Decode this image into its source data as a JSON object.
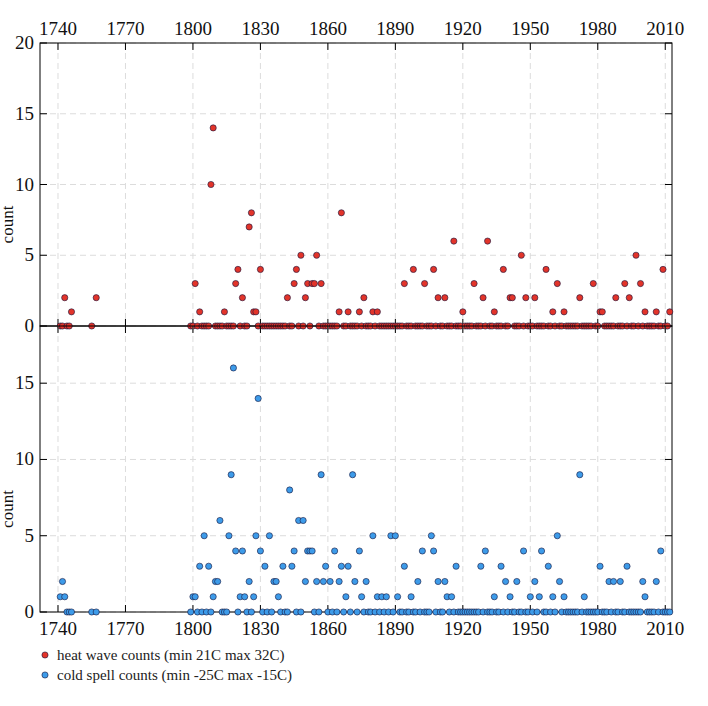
{
  "chart_data": [
    {
      "type": "scatter",
      "y_label": "count",
      "xlim": [
        1732,
        2013
      ],
      "xticks": [
        1740,
        1770,
        1800,
        1830,
        1860,
        1890,
        1920,
        1950,
        1980,
        2010
      ],
      "ylim": [
        0,
        20
      ],
      "yticks": [
        0,
        5,
        10,
        15,
        20
      ],
      "grid": true,
      "legend": "bottom",
      "x": [
        1741,
        1742,
        1743,
        1744,
        1745,
        1746,
        1755,
        1757,
        1799,
        1800,
        1801,
        1802,
        1803,
        1804,
        1805,
        1806,
        1807,
        1808,
        1809,
        1810,
        1811,
        1812,
        1813,
        1814,
        1815,
        1816,
        1817,
        1818,
        1819,
        1820,
        1821,
        1822,
        1823,
        1824,
        1825,
        1826,
        1827,
        1828,
        1829,
        1830,
        1831,
        1832,
        1833,
        1834,
        1835,
        1836,
        1837,
        1838,
        1839,
        1840,
        1841,
        1842,
        1843,
        1844,
        1845,
        1846,
        1847,
        1848,
        1849,
        1850,
        1851,
        1852,
        1853,
        1854,
        1855,
        1856,
        1857,
        1858,
        1859,
        1860,
        1861,
        1862,
        1863,
        1864,
        1865,
        1866,
        1867,
        1868,
        1869,
        1870,
        1871,
        1872,
        1873,
        1874,
        1875,
        1876,
        1877,
        1878,
        1879,
        1880,
        1881,
        1882,
        1883,
        1884,
        1885,
        1886,
        1887,
        1888,
        1889,
        1890,
        1891,
        1892,
        1893,
        1894,
        1895,
        1896,
        1897,
        1898,
        1899,
        1900,
        1901,
        1902,
        1903,
        1904,
        1905,
        1906,
        1907,
        1908,
        1909,
        1910,
        1911,
        1912,
        1913,
        1914,
        1915,
        1916,
        1917,
        1918,
        1919,
        1920,
        1921,
        1922,
        1923,
        1924,
        1925,
        1926,
        1927,
        1928,
        1929,
        1930,
        1931,
        1932,
        1933,
        1934,
        1935,
        1936,
        1937,
        1938,
        1939,
        1940,
        1941,
        1942,
        1943,
        1944,
        1945,
        1946,
        1947,
        1948,
        1949,
        1950,
        1951,
        1952,
        1953,
        1954,
        1955,
        1956,
        1957,
        1958,
        1959,
        1960,
        1961,
        1962,
        1963,
        1964,
        1965,
        1966,
        1967,
        1968,
        1969,
        1970,
        1971,
        1972,
        1973,
        1974,
        1975,
        1976,
        1977,
        1978,
        1979,
        1980,
        1981,
        1982,
        1983,
        1984,
        1985,
        1986,
        1987,
        1988,
        1989,
        1990,
        1991,
        1992,
        1993,
        1994,
        1995,
        1996,
        1997,
        1998,
        1999,
        2000,
        2001,
        2002,
        2003,
        2004,
        2005,
        2006,
        2007,
        2008,
        2009,
        2010,
        2011,
        2012
      ],
      "series": [
        {
          "name": "heat wave counts (min 21C max 32C)",
          "color": "#e2342a",
          "marker": "circle",
          "values": [
            0,
            0,
            2,
            0,
            0,
            1,
            0,
            2,
            0,
            0,
            3,
            0,
            1,
            0,
            0,
            0,
            0,
            10,
            14,
            0,
            0,
            0,
            0,
            1,
            0,
            0,
            0,
            0,
            3,
            4,
            0,
            2,
            0,
            0,
            7,
            8,
            1,
            1,
            0,
            4,
            0,
            0,
            0,
            0,
            0,
            0,
            0,
            0,
            0,
            0,
            0,
            2,
            0,
            0,
            3,
            4,
            0,
            5,
            0,
            2,
            3,
            0,
            3,
            3,
            5,
            0,
            3,
            0,
            0,
            0,
            0,
            0,
            0,
            0,
            1,
            8,
            0,
            0,
            1,
            0,
            0,
            0,
            0,
            1,
            0,
            2,
            0,
            0,
            0,
            1,
            0,
            1,
            0,
            0,
            0,
            0,
            0,
            0,
            0,
            0,
            0,
            0,
            0,
            3,
            0,
            0,
            0,
            4,
            0,
            0,
            0,
            0,
            3,
            0,
            0,
            0,
            4,
            0,
            2,
            0,
            0,
            2,
            0,
            0,
            0,
            6,
            0,
            0,
            0,
            1,
            0,
            0,
            0,
            0,
            3,
            0,
            0,
            0,
            2,
            0,
            6,
            0,
            0,
            1,
            0,
            0,
            0,
            4,
            0,
            0,
            2,
            2,
            0,
            0,
            0,
            5,
            0,
            2,
            0,
            0,
            0,
            2,
            0,
            0,
            0,
            0,
            4,
            0,
            0,
            1,
            0,
            3,
            0,
            0,
            1,
            0,
            0,
            0,
            0,
            0,
            0,
            2,
            0,
            0,
            0,
            0,
            0,
            3,
            0,
            0,
            1,
            1,
            0,
            0,
            0,
            0,
            0,
            2,
            0,
            0,
            0,
            3,
            0,
            2,
            0,
            0,
            5,
            0,
            3,
            0,
            1,
            0,
            0,
            0,
            0,
            1,
            0,
            0,
            4,
            0,
            0,
            1
          ]
        }
      ]
    },
    {
      "type": "scatter",
      "y_label": "count",
      "xlim": [
        1732,
        2013
      ],
      "xticks": [
        1740,
        1770,
        1800,
        1830,
        1860,
        1890,
        1920,
        1950,
        1980,
        2010
      ],
      "ylim": [
        0,
        18.75
      ],
      "yticks": [
        0,
        5,
        10,
        15
      ],
      "grid": true,
      "legend": "bottom",
      "x": [
        1741,
        1742,
        1743,
        1744,
        1745,
        1746,
        1755,
        1757,
        1799,
        1800,
        1801,
        1802,
        1803,
        1804,
        1805,
        1806,
        1807,
        1808,
        1809,
        1810,
        1811,
        1812,
        1813,
        1814,
        1815,
        1816,
        1817,
        1818,
        1819,
        1820,
        1821,
        1822,
        1823,
        1824,
        1825,
        1826,
        1827,
        1828,
        1829,
        1830,
        1831,
        1832,
        1833,
        1834,
        1835,
        1836,
        1837,
        1838,
        1839,
        1840,
        1841,
        1842,
        1843,
        1844,
        1845,
        1846,
        1847,
        1848,
        1849,
        1850,
        1851,
        1852,
        1853,
        1854,
        1855,
        1856,
        1857,
        1858,
        1859,
        1860,
        1861,
        1862,
        1863,
        1864,
        1865,
        1866,
        1867,
        1868,
        1869,
        1870,
        1871,
        1872,
        1873,
        1874,
        1875,
        1876,
        1877,
        1878,
        1879,
        1880,
        1881,
        1882,
        1883,
        1884,
        1885,
        1886,
        1887,
        1888,
        1889,
        1890,
        1891,
        1892,
        1893,
        1894,
        1895,
        1896,
        1897,
        1898,
        1899,
        1900,
        1901,
        1902,
        1903,
        1904,
        1905,
        1906,
        1907,
        1908,
        1909,
        1910,
        1911,
        1912,
        1913,
        1914,
        1915,
        1916,
        1917,
        1918,
        1919,
        1920,
        1921,
        1922,
        1923,
        1924,
        1925,
        1926,
        1927,
        1928,
        1929,
        1930,
        1931,
        1932,
        1933,
        1934,
        1935,
        1936,
        1937,
        1938,
        1939,
        1940,
        1941,
        1942,
        1943,
        1944,
        1945,
        1946,
        1947,
        1948,
        1949,
        1950,
        1951,
        1952,
        1953,
        1954,
        1955,
        1956,
        1957,
        1958,
        1959,
        1960,
        1961,
        1962,
        1963,
        1964,
        1965,
        1966,
        1967,
        1968,
        1969,
        1970,
        1971,
        1972,
        1973,
        1974,
        1975,
        1976,
        1977,
        1978,
        1979,
        1980,
        1981,
        1982,
        1983,
        1984,
        1985,
        1986,
        1987,
        1988,
        1989,
        1990,
        1991,
        1992,
        1993,
        1994,
        1995,
        1996,
        1997,
        1998,
        1999,
        2000,
        2001,
        2002,
        2003,
        2004,
        2005,
        2006,
        2007,
        2008,
        2009,
        2010,
        2011,
        2012
      ],
      "series": [
        {
          "name": "cold spell counts (min -25C max -15C)",
          "color": "#3d9be9",
          "marker": "circle",
          "values": [
            1,
            2,
            1,
            0,
            0,
            0,
            0,
            0,
            0,
            1,
            1,
            0,
            3,
            0,
            5,
            0,
            3,
            0,
            1,
            2,
            2,
            6,
            0,
            0,
            0,
            5,
            9,
            16,
            4,
            0,
            1,
            4,
            1,
            0,
            2,
            0,
            1,
            5,
            14,
            4,
            0,
            3,
            0,
            5,
            0,
            2,
            2,
            1,
            0,
            3,
            0,
            0,
            8,
            3,
            4,
            0,
            6,
            0,
            6,
            2,
            4,
            4,
            4,
            0,
            2,
            0,
            9,
            2,
            3,
            0,
            2,
            0,
            4,
            0,
            2,
            3,
            0,
            1,
            3,
            0,
            9,
            2,
            0,
            4,
            1,
            0,
            2,
            0,
            0,
            5,
            0,
            1,
            0,
            1,
            0,
            1,
            0,
            5,
            0,
            5,
            1,
            0,
            0,
            3,
            0,
            0,
            1,
            0,
            0,
            2,
            0,
            4,
            0,
            0,
            0,
            5,
            4,
            0,
            2,
            0,
            0,
            2,
            1,
            0,
            1,
            0,
            3,
            0,
            0,
            0,
            0,
            0,
            0,
            0,
            0,
            0,
            0,
            3,
            0,
            4,
            0,
            0,
            0,
            1,
            0,
            0,
            3,
            0,
            2,
            0,
            1,
            0,
            0,
            2,
            0,
            0,
            4,
            0,
            0,
            1,
            0,
            2,
            0,
            1,
            4,
            0,
            0,
            3,
            0,
            1,
            0,
            5,
            2,
            0,
            1,
            0,
            0,
            0,
            0,
            0,
            0,
            9,
            0,
            1,
            0,
            0,
            0,
            0,
            0,
            0,
            3,
            0,
            0,
            0,
            2,
            0,
            2,
            0,
            0,
            2,
            0,
            0,
            3,
            0,
            0,
            0,
            0,
            0,
            0,
            2,
            1,
            0,
            0,
            0,
            0,
            2,
            0,
            4,
            0,
            0,
            0,
            0
          ]
        }
      ]
    }
  ]
}
